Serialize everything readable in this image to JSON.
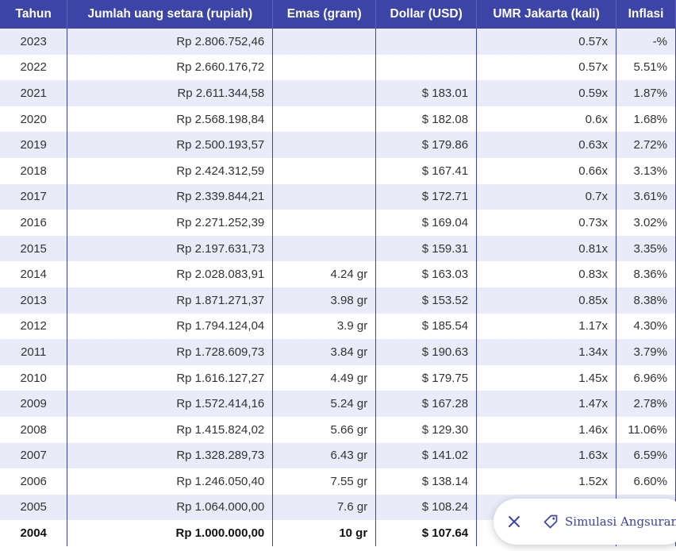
{
  "colors": {
    "header_bg": "#3c45a5",
    "row_alt": "#e9ebf8",
    "accent": "#3c45a5"
  },
  "table": {
    "headers": [
      "Tahun",
      "Jumlah uang setara (rupiah)",
      "Emas (gram)",
      "Dollar (USD)",
      "UMR Jakarta (kali)",
      "Inflasi"
    ],
    "rows": [
      [
        "2023",
        "Rp 2.806.752,46",
        "",
        "",
        "0.57x",
        "-%"
      ],
      [
        "2022",
        "Rp 2.660.176,72",
        "",
        "",
        "0.57x",
        "5.51%"
      ],
      [
        "2021",
        "Rp 2.611.344,58",
        "",
        "$ 183.01",
        "0.59x",
        "1.87%"
      ],
      [
        "2020",
        "Rp 2.568.198,84",
        "",
        "$ 182.08",
        "0.6x",
        "1.68%"
      ],
      [
        "2019",
        "Rp 2.500.193,57",
        "",
        "$ 179.86",
        "0.63x",
        "2.72%"
      ],
      [
        "2018",
        "Rp 2.424.312,59",
        "",
        "$ 167.41",
        "0.66x",
        "3.13%"
      ],
      [
        "2017",
        "Rp 2.339.844,21",
        "",
        "$ 172.71",
        "0.7x",
        "3.61%"
      ],
      [
        "2016",
        "Rp 2.271.252,39",
        "",
        "$ 169.04",
        "0.73x",
        "3.02%"
      ],
      [
        "2015",
        "Rp 2.197.631,73",
        "",
        "$ 159.31",
        "0.81x",
        "3.35%"
      ],
      [
        "2014",
        "Rp 2.028.083,91",
        "4.24 gr",
        "$ 163.03",
        "0.83x",
        "8.36%"
      ],
      [
        "2013",
        "Rp 1.871.271,37",
        "3.98 gr",
        "$ 153.52",
        "0.85x",
        "8.38%"
      ],
      [
        "2012",
        "Rp 1.794.124,04",
        "3.9 gr",
        "$ 185.54",
        "1.17x",
        "4.30%"
      ],
      [
        "2011",
        "Rp 1.728.609,73",
        "3.84 gr",
        "$ 190.63",
        "1.34x",
        "3.79%"
      ],
      [
        "2010",
        "Rp 1.616.127,27",
        "4.49 gr",
        "$ 179.75",
        "1.45x",
        "6.96%"
      ],
      [
        "2009",
        "Rp 1.572.414,16",
        "5.24 gr",
        "$ 167.28",
        "1.47x",
        "2.78%"
      ],
      [
        "2008",
        "Rp 1.415.824,02",
        "5.66 gr",
        "$ 129.30",
        "1.46x",
        "11.06%"
      ],
      [
        "2007",
        "Rp 1.328.289,73",
        "6.43 gr",
        "$ 141.02",
        "1.63x",
        "6.59%"
      ],
      [
        "2006",
        "Rp 1.246.050,40",
        "7.55 gr",
        "$ 138.14",
        "1.52x",
        "6.60%"
      ],
      [
        "2005",
        "Rp 1.064.000,00",
        "7.6 gr",
        "$ 108.24",
        "",
        ""
      ],
      [
        "2004",
        "Rp 1.000.000,00",
        "10 gr",
        "$ 107.64",
        "",
        ""
      ]
    ]
  },
  "fab": {
    "close_icon": "close-icon",
    "tag_icon": "tag-icon",
    "label": "Simulasi Angsuran"
  }
}
